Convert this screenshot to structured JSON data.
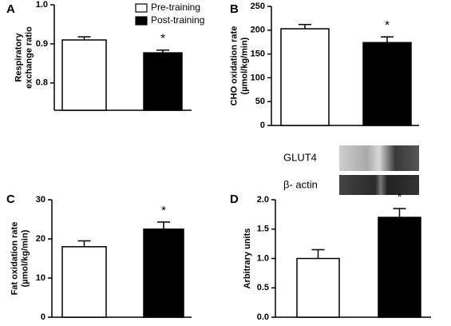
{
  "chart_data": [
    {
      "type": "bar",
      "panel": "A",
      "ylabel": [
        "Respiratory",
        "exchange ratio"
      ],
      "ylim": [
        0.73,
        1.0
      ],
      "yticks": [
        0.8,
        0.9,
        {
          "value": 1.0,
          "label": "1.0"
        }
      ],
      "series": [
        {
          "name": "Pre-training",
          "color": "#ffffff",
          "values": [
            0.91
          ],
          "errors": [
            0.008
          ]
        },
        {
          "name": "Post-training",
          "color": "#000000",
          "values": [
            0.877
          ],
          "errors": [
            0.007
          ]
        }
      ],
      "annotation": "*"
    },
    {
      "type": "bar",
      "panel": "B",
      "ylabel": [
        "CHO oxidation rate",
        "(µmol/kg/min)"
      ],
      "ylim": [
        0,
        250
      ],
      "yticks": [
        0,
        50,
        100,
        150,
        200,
        250
      ],
      "series": [
        {
          "color": "#ffffff",
          "values": [
            203
          ],
          "errors": [
            9
          ]
        },
        {
          "color": "#000000",
          "values": [
            174
          ],
          "errors": [
            12
          ]
        }
      ],
      "annotation": "*"
    },
    {
      "type": "bar",
      "panel": "C",
      "ylabel": [
        "Fat oxidation rate",
        "(µmol/kg/min)"
      ],
      "ylim": [
        0,
        30
      ],
      "yticks": [
        0,
        10,
        20,
        30
      ],
      "series": [
        {
          "color": "#ffffff",
          "values": [
            18
          ],
          "errors": [
            1.5
          ]
        },
        {
          "color": "#000000",
          "values": [
            22.5
          ],
          "errors": [
            1.8
          ]
        }
      ],
      "annotation": "*"
    },
    {
      "type": "bar",
      "panel": "D",
      "ylabel": [
        "Arbitrary units"
      ],
      "ylim": [
        0,
        2.0
      ],
      "yticks": [
        {
          "value": 0,
          "label": "0.0"
        },
        0.5,
        {
          "value": 1.0,
          "label": "1.0"
        },
        1.5,
        {
          "value": 2.0,
          "label": "2.0"
        }
      ],
      "series": [
        {
          "color": "#ffffff",
          "values": [
            1.0
          ],
          "errors": [
            0.15
          ]
        },
        {
          "color": "#000000",
          "values": [
            1.7
          ],
          "errors": [
            0.15
          ]
        }
      ],
      "annotation": "*",
      "blot_labels": [
        "GLUT4",
        "β- actin"
      ]
    }
  ]
}
